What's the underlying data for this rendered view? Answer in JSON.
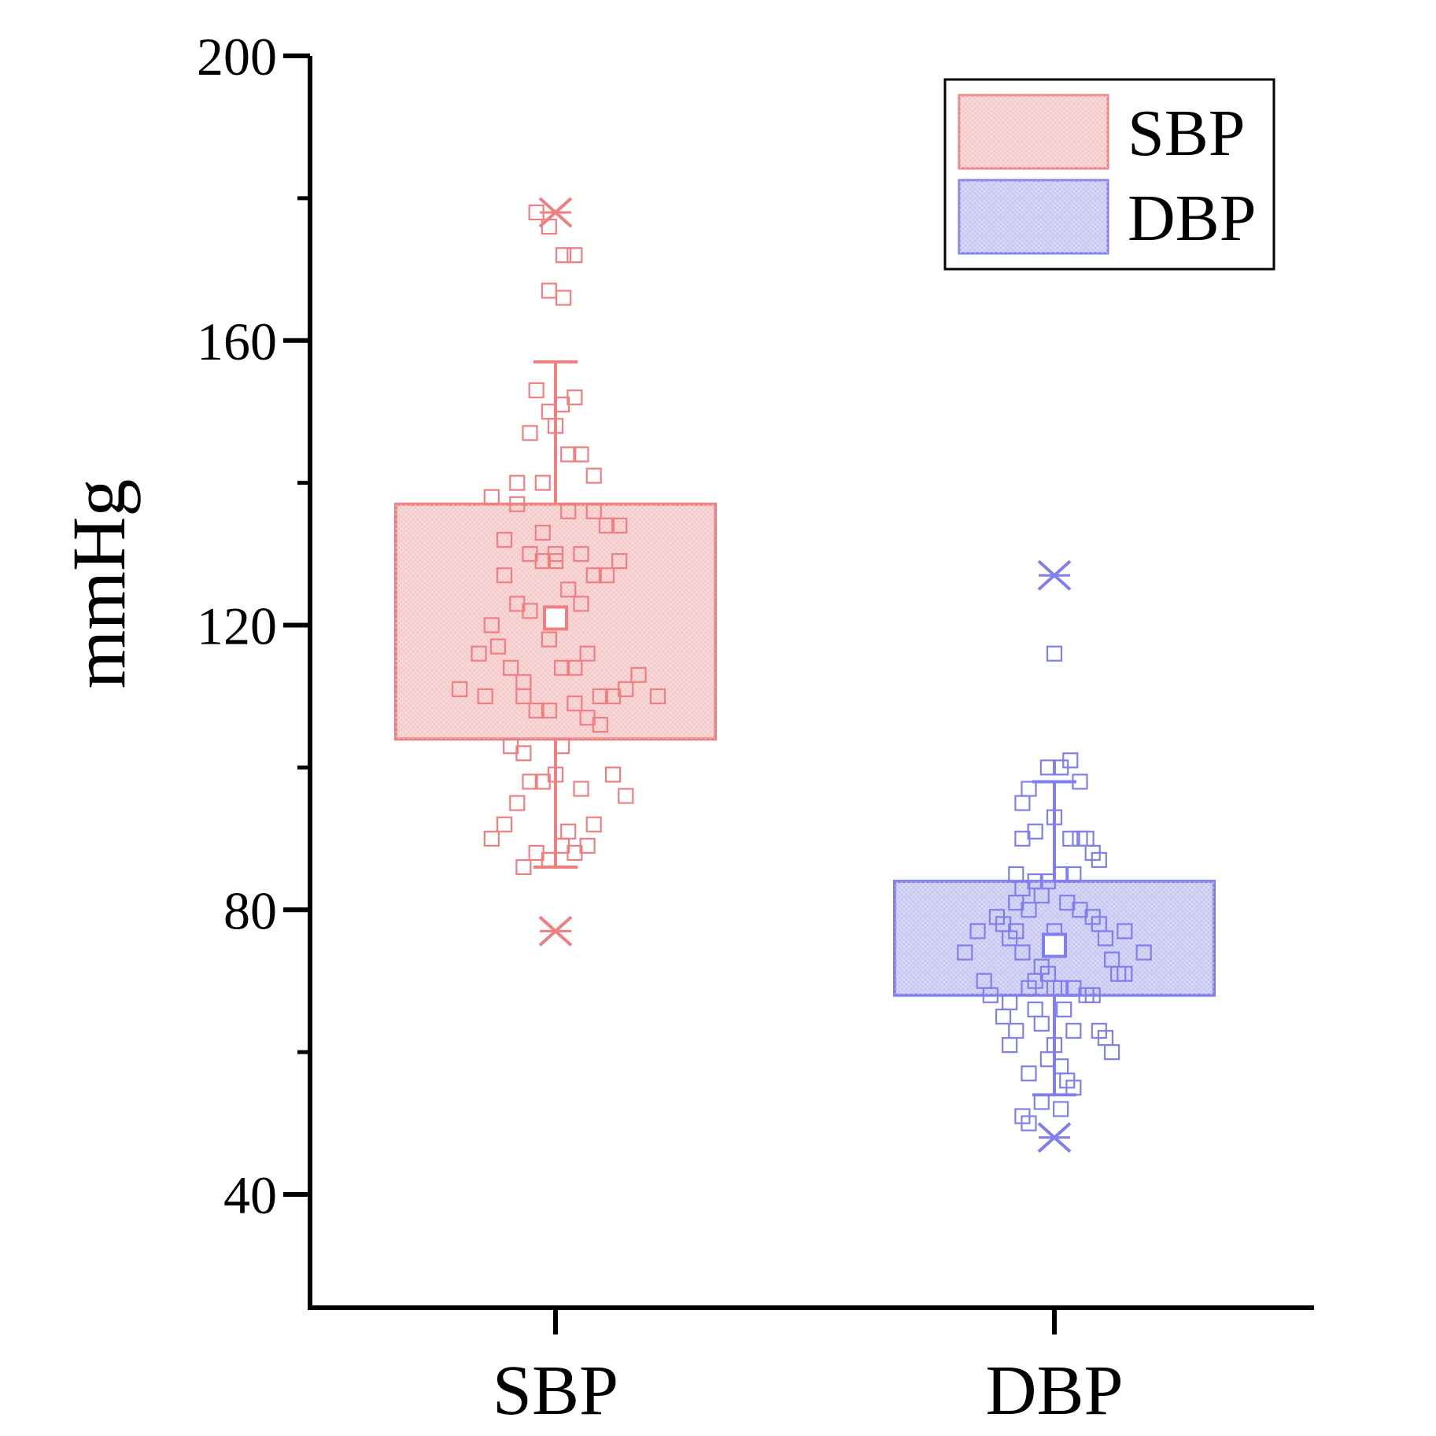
{
  "chart_data": {
    "type": "box",
    "title": "",
    "xlabel": "",
    "ylabel": "mmHg",
    "ylim": [
      25,
      200
    ],
    "yticks": [
      40,
      80,
      120,
      160,
      200
    ],
    "categories": [
      "SBP",
      "DBP"
    ],
    "legend": {
      "position": "top-right",
      "entries": [
        {
          "label": "SBP",
          "series": "SBP"
        },
        {
          "label": "DBP",
          "series": "DBP"
        }
      ]
    },
    "series": [
      {
        "name": "SBP",
        "color": "#ef7f80",
        "fill": "#f6caca",
        "q1": 104,
        "q3": 137,
        "mean": 121,
        "whisker_low": 86,
        "whisker_high": 157,
        "extremes": [
          77,
          178
        ],
        "points": [
          {
            "offset": -0.12,
            "value": 178
          },
          {
            "offset": -0.04,
            "value": 176
          },
          {
            "offset": 0.05,
            "value": 172
          },
          {
            "offset": 0.12,
            "value": 172
          },
          {
            "offset": -0.04,
            "value": 167
          },
          {
            "offset": 0.05,
            "value": 166
          },
          {
            "offset": -0.12,
            "value": 153
          },
          {
            "offset": 0.12,
            "value": 152
          },
          {
            "offset": 0.04,
            "value": 151
          },
          {
            "offset": -0.04,
            "value": 150
          },
          {
            "offset": 0.0,
            "value": 148
          },
          {
            "offset": -0.16,
            "value": 147
          },
          {
            "offset": 0.08,
            "value": 144
          },
          {
            "offset": 0.16,
            "value": 144
          },
          {
            "offset": 0.24,
            "value": 141
          },
          {
            "offset": -0.24,
            "value": 140
          },
          {
            "offset": -0.08,
            "value": 140
          },
          {
            "offset": -0.4,
            "value": 138
          },
          {
            "offset": -0.24,
            "value": 137
          },
          {
            "offset": 0.08,
            "value": 136
          },
          {
            "offset": 0.24,
            "value": 136
          },
          {
            "offset": 0.32,
            "value": 134
          },
          {
            "offset": 0.4,
            "value": 134
          },
          {
            "offset": -0.08,
            "value": 133
          },
          {
            "offset": -0.32,
            "value": 132
          },
          {
            "offset": -0.16,
            "value": 130
          },
          {
            "offset": 0.0,
            "value": 130
          },
          {
            "offset": 0.16,
            "value": 130
          },
          {
            "offset": -0.08,
            "value": 129
          },
          {
            "offset": 0.0,
            "value": 129
          },
          {
            "offset": 0.4,
            "value": 129
          },
          {
            "offset": -0.32,
            "value": 127
          },
          {
            "offset": 0.24,
            "value": 127
          },
          {
            "offset": 0.32,
            "value": 127
          },
          {
            "offset": 0.08,
            "value": 125
          },
          {
            "offset": -0.24,
            "value": 123
          },
          {
            "offset": 0.16,
            "value": 123
          },
          {
            "offset": -0.16,
            "value": 122
          },
          {
            "offset": -0.4,
            "value": 120
          },
          {
            "offset": -0.04,
            "value": 118
          },
          {
            "offset": -0.36,
            "value": 117
          },
          {
            "offset": -0.48,
            "value": 116
          },
          {
            "offset": 0.2,
            "value": 116
          },
          {
            "offset": -0.28,
            "value": 114
          },
          {
            "offset": 0.04,
            "value": 114
          },
          {
            "offset": 0.12,
            "value": 114
          },
          {
            "offset": 0.52,
            "value": 113
          },
          {
            "offset": -0.2,
            "value": 112
          },
          {
            "offset": -0.6,
            "value": 111
          },
          {
            "offset": 0.44,
            "value": 111
          },
          {
            "offset": -0.44,
            "value": 110
          },
          {
            "offset": -0.2,
            "value": 110
          },
          {
            "offset": 0.28,
            "value": 110
          },
          {
            "offset": 0.36,
            "value": 110
          },
          {
            "offset": 0.64,
            "value": 110
          },
          {
            "offset": 0.12,
            "value": 109
          },
          {
            "offset": -0.12,
            "value": 108
          },
          {
            "offset": -0.04,
            "value": 108
          },
          {
            "offset": 0.2,
            "value": 107
          },
          {
            "offset": 0.28,
            "value": 106
          },
          {
            "offset": -0.28,
            "value": 103
          },
          {
            "offset": 0.04,
            "value": 103
          },
          {
            "offset": -0.2,
            "value": 102
          },
          {
            "offset": 0.36,
            "value": 99
          },
          {
            "offset": 0.0,
            "value": 99
          },
          {
            "offset": -0.16,
            "value": 98
          },
          {
            "offset": -0.08,
            "value": 98
          },
          {
            "offset": 0.16,
            "value": 97
          },
          {
            "offset": 0.44,
            "value": 96
          },
          {
            "offset": -0.24,
            "value": 95
          },
          {
            "offset": -0.32,
            "value": 92
          },
          {
            "offset": 0.24,
            "value": 92
          },
          {
            "offset": 0.08,
            "value": 91
          },
          {
            "offset": -0.4,
            "value": 90
          },
          {
            "offset": 0.04,
            "value": 89
          },
          {
            "offset": 0.2,
            "value": 89
          },
          {
            "offset": -0.12,
            "value": 88
          },
          {
            "offset": 0.12,
            "value": 88
          },
          {
            "offset": -0.04,
            "value": 87
          },
          {
            "offset": -0.2,
            "value": 86
          }
        ]
      },
      {
        "name": "DBP",
        "color": "#7f7ff0",
        "fill": "#c8c8f2",
        "q1": 68,
        "q3": 84,
        "mean": 75,
        "whisker_low": 54,
        "whisker_high": 98,
        "extremes": [
          48,
          127
        ],
        "points": [
          {
            "offset": 0.0,
            "value": 116
          },
          {
            "offset": 0.1,
            "value": 101
          },
          {
            "offset": -0.04,
            "value": 100
          },
          {
            "offset": 0.04,
            "value": 100
          },
          {
            "offset": 0.16,
            "value": 98
          },
          {
            "offset": -0.16,
            "value": 97
          },
          {
            "offset": -0.2,
            "value": 95
          },
          {
            "offset": 0.0,
            "value": 93
          },
          {
            "offset": -0.12,
            "value": 91
          },
          {
            "offset": -0.2,
            "value": 90
          },
          {
            "offset": 0.1,
            "value": 90
          },
          {
            "offset": 0.16,
            "value": 90
          },
          {
            "offset": 0.2,
            "value": 90
          },
          {
            "offset": 0.24,
            "value": 88
          },
          {
            "offset": 0.28,
            "value": 87
          },
          {
            "offset": -0.24,
            "value": 85
          },
          {
            "offset": 0.04,
            "value": 85
          },
          {
            "offset": 0.12,
            "value": 85
          },
          {
            "offset": -0.12,
            "value": 84
          },
          {
            "offset": -0.04,
            "value": 84
          },
          {
            "offset": -0.2,
            "value": 83
          },
          {
            "offset": -0.08,
            "value": 82
          },
          {
            "offset": -0.24,
            "value": 81
          },
          {
            "offset": 0.08,
            "value": 81
          },
          {
            "offset": -0.16,
            "value": 80
          },
          {
            "offset": 0.16,
            "value": 80
          },
          {
            "offset": -0.36,
            "value": 79
          },
          {
            "offset": 0.24,
            "value": 79
          },
          {
            "offset": -0.32,
            "value": 78
          },
          {
            "offset": 0.28,
            "value": 78
          },
          {
            "offset": -0.48,
            "value": 77
          },
          {
            "offset": -0.24,
            "value": 77
          },
          {
            "offset": 0.0,
            "value": 77
          },
          {
            "offset": 0.44,
            "value": 77
          },
          {
            "offset": -0.28,
            "value": 76
          },
          {
            "offset": 0.32,
            "value": 76
          },
          {
            "offset": -0.56,
            "value": 74
          },
          {
            "offset": -0.2,
            "value": 74
          },
          {
            "offset": 0.56,
            "value": 74
          },
          {
            "offset": 0.36,
            "value": 73
          },
          {
            "offset": -0.08,
            "value": 72
          },
          {
            "offset": -0.04,
            "value": 71
          },
          {
            "offset": 0.4,
            "value": 71
          },
          {
            "offset": 0.44,
            "value": 71
          },
          {
            "offset": -0.44,
            "value": 70
          },
          {
            "offset": -0.12,
            "value": 70
          },
          {
            "offset": -0.16,
            "value": 69
          },
          {
            "offset": 0.0,
            "value": 69
          },
          {
            "offset": 0.04,
            "value": 69
          },
          {
            "offset": 0.12,
            "value": 69
          },
          {
            "offset": -0.4,
            "value": 68
          },
          {
            "offset": 0.2,
            "value": 68
          },
          {
            "offset": 0.24,
            "value": 68
          },
          {
            "offset": -0.28,
            "value": 67
          },
          {
            "offset": -0.12,
            "value": 66
          },
          {
            "offset": 0.06,
            "value": 66
          },
          {
            "offset": -0.32,
            "value": 65
          },
          {
            "offset": -0.08,
            "value": 64
          },
          {
            "offset": -0.24,
            "value": 63
          },
          {
            "offset": 0.12,
            "value": 63
          },
          {
            "offset": 0.28,
            "value": 63
          },
          {
            "offset": 0.32,
            "value": 62
          },
          {
            "offset": -0.28,
            "value": 61
          },
          {
            "offset": 0.0,
            "value": 61
          },
          {
            "offset": 0.36,
            "value": 60
          },
          {
            "offset": -0.04,
            "value": 59
          },
          {
            "offset": 0.04,
            "value": 58
          },
          {
            "offset": -0.16,
            "value": 57
          },
          {
            "offset": 0.08,
            "value": 56
          },
          {
            "offset": 0.12,
            "value": 55
          },
          {
            "offset": -0.08,
            "value": 53
          },
          {
            "offset": 0.04,
            "value": 52
          },
          {
            "offset": -0.2,
            "value": 51
          },
          {
            "offset": -0.16,
            "value": 50
          }
        ]
      }
    ]
  }
}
